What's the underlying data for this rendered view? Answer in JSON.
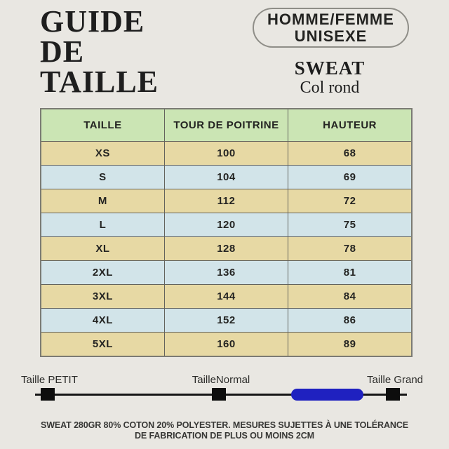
{
  "header": {
    "title_lines": [
      "GUIDE",
      "DE",
      "TAILLE"
    ],
    "badge_line1": "HOMME/FEMME",
    "badge_line2": "UNISEXE",
    "product_name": "SWEAT",
    "product_subtitle": "Col rond"
  },
  "table": {
    "headers": [
      "TAILLE",
      "TOUR DE POITRINE",
      "HAUTEUR"
    ],
    "rows": [
      [
        "XS",
        "100",
        "68"
      ],
      [
        "S",
        "104",
        "69"
      ],
      [
        "M",
        "112",
        "72"
      ],
      [
        "L",
        "120",
        "75"
      ],
      [
        "XL",
        "128",
        "78"
      ],
      [
        "2XL",
        "136",
        "81"
      ],
      [
        "3XL",
        "144",
        "84"
      ],
      [
        "4XL",
        "152",
        "86"
      ],
      [
        "5XL",
        "160",
        "89"
      ]
    ]
  },
  "slider": {
    "labels": [
      "Taille PETIT",
      "TailleNormal",
      "Taille Grand"
    ]
  },
  "footer": {
    "line1": "SWEAT 280GR 80% COTON 20% POLYESTER. MESURES SUJETTES À UNE TOLÉRANCE",
    "line2": "DE FABRICATION DE PLUS OU MOINS 2CM"
  },
  "colors": {
    "background": "#e9e7e2",
    "header_green": "#cbe5b4",
    "row_tan": "#e7d9a4",
    "row_blue": "#d2e4e9",
    "table_border": "#63635d",
    "marker_black": "#0d0d0d",
    "accent_blue": "#1f21c0",
    "text_dark": "#1e1e1e"
  }
}
